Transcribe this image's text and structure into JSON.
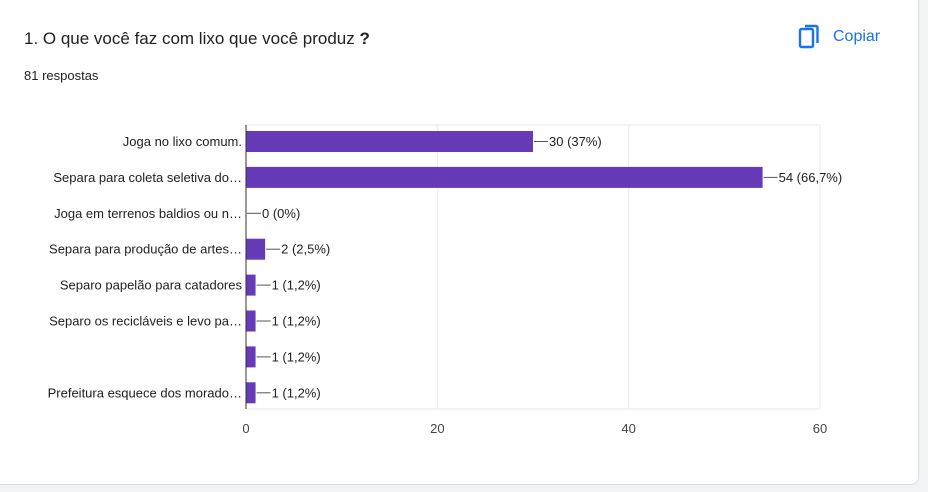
{
  "question": {
    "title": "1. O que você faz com lixo que você produz",
    "title_mark": "?",
    "response_count": "81 respostas"
  },
  "toolbar": {
    "copy_label": "Copiar",
    "copy_icon": "copy-icon"
  },
  "colors": {
    "bar": "#673ab7",
    "accent": "#1a73e8",
    "grid": "#e8eaed"
  },
  "chart_data": {
    "type": "bar",
    "orientation": "horizontal",
    "categories": [
      "Joga no lixo comum.",
      "Separa para coleta seletiva do…",
      "Joga em terrenos baldios ou n…",
      "Separa para produção de artes…",
      "Separo papelão para catadores",
      "Separo os recicláveis e levo pa…",
      "",
      "Prefeitura esquece dos morado…"
    ],
    "values": [
      30,
      54,
      0,
      2,
      1,
      1,
      1,
      1
    ],
    "data_labels": [
      "30 (37%)",
      "54 (66,7%)",
      "0 (0%)",
      "2 (2,5%)",
      "1 (1,2%)",
      "1 (1,2%)",
      "1 (1,2%)",
      "1 (1,2%)"
    ],
    "xlim": [
      0,
      60
    ],
    "xticks": [
      0,
      20,
      40,
      60
    ],
    "grid": true
  }
}
